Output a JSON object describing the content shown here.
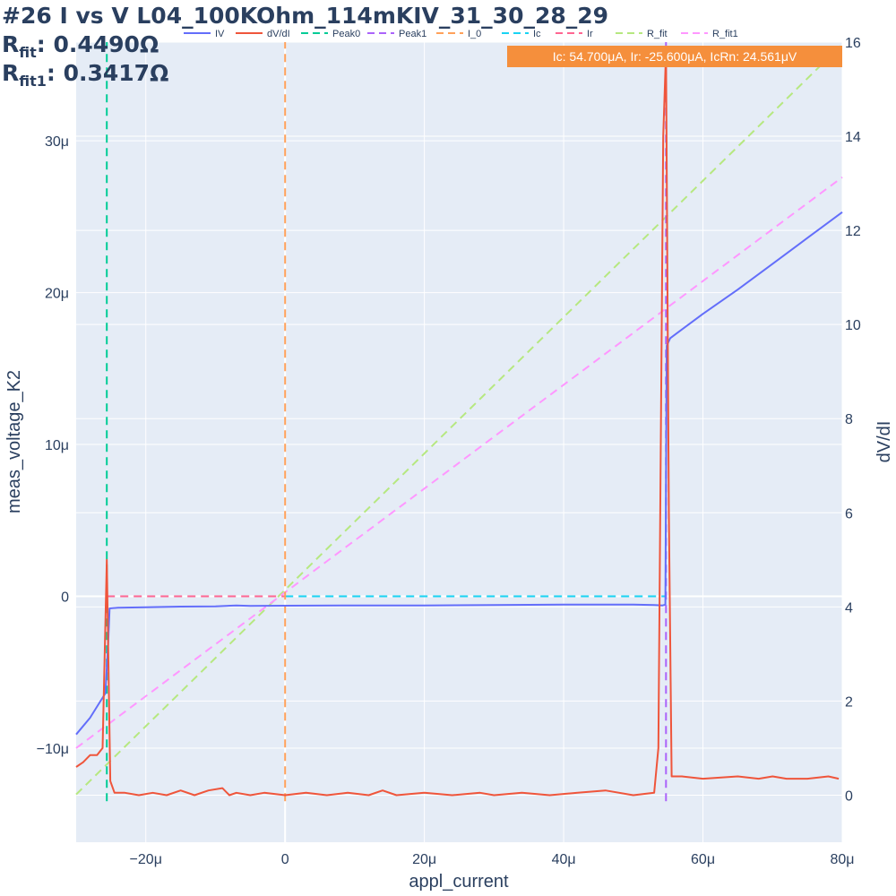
{
  "title": {
    "line1": "#26 I vs V L04_100KOhm_114mKIV_31_30_28_29",
    "rfit_label": "R",
    "rfit_sub": "fit",
    "rfit_value": ": 0.4490Ω",
    "rfit1_label": "R",
    "rfit1_sub": "fit1",
    "rfit1_value": ": 0.3417Ω"
  },
  "annotation": {
    "text": "Ic: 54.700μA, Ir: -25.600μA, IcRn: 24.561μV",
    "bg_color": "#f58f3c"
  },
  "chart_data": {
    "type": "line",
    "xlabel": "appl_current",
    "ylabel": "meas_voltage_K2",
    "y2label": "dV/dI",
    "xlim": [
      -3e-05,
      8e-05
    ],
    "ylim": [
      -1.62e-05,
      3.65e-05
    ],
    "y2lim": [
      -1.0,
      16.0
    ],
    "x_ticks": [
      -2e-05,
      0,
      2e-05,
      4e-05,
      6e-05,
      8e-05
    ],
    "x_tick_labels": [
      "−20μ",
      "0",
      "20μ",
      "40μ",
      "60μ",
      "80μ"
    ],
    "y_ticks": [
      -1e-05,
      0,
      1e-05,
      2e-05,
      3e-05
    ],
    "y_tick_labels": [
      "−10μ",
      "0",
      "10μ",
      "20μ",
      "30μ"
    ],
    "y2_ticks": [
      0,
      2,
      4,
      6,
      8,
      10,
      12,
      14,
      16
    ],
    "y2_tick_labels": [
      "0",
      "2",
      "4",
      "6",
      "8",
      "10",
      "12",
      "14",
      "16"
    ],
    "grid": true,
    "legend_position": "top",
    "series": [
      {
        "name": "IV",
        "color": "#636efa",
        "dash": "solid",
        "axis": "y",
        "x": [
          -3e-05,
          -2.8e-05,
          -2.65e-05,
          -2.58e-05,
          -2.54e-05,
          -2.52e-05,
          -2.4e-05,
          -2e-05,
          -1.5e-05,
          -1e-05,
          -7e-06,
          -5e-06,
          0,
          1e-05,
          2e-05,
          3e-05,
          4e-05,
          5e-05,
          5.3e-05,
          5.42e-05,
          5.46e-05,
          5.48e-05,
          5.53e-05,
          6e-05,
          6.5e-05,
          7e-05,
          7.5e-05,
          8e-05
        ],
        "y": [
          -9.1e-06,
          -8e-06,
          -6.9e-06,
          -6.4e-06,
          -3e-06,
          -8e-07,
          -7.5e-07,
          -7.2e-07,
          -6.8e-07,
          -6.6e-07,
          -6e-07,
          -6.4e-07,
          -6.2e-07,
          -6e-07,
          -6e-07,
          -5.8e-07,
          -5.5e-07,
          -5.5e-07,
          -5.8e-07,
          -6e-07,
          -5.5e-07,
          1.65e-05,
          1.7e-05,
          1.86e-05,
          2.02e-05,
          2.19e-05,
          2.36e-05,
          2.53e-05
        ]
      },
      {
        "name": "dV/dI",
        "color": "#ef553b",
        "dash": "solid",
        "axis": "y2",
        "x": [
          -3e-05,
          -2.9e-05,
          -2.8e-05,
          -2.7e-05,
          -2.62e-05,
          -2.56e-05,
          -2.51e-05,
          -2.45e-05,
          -2.3e-05,
          -2.1e-05,
          -1.9e-05,
          -1.7e-05,
          -1.5e-05,
          -1.3e-05,
          -1.1e-05,
          -9e-06,
          -8e-06,
          -7e-06,
          -5e-06,
          -3e-06,
          0,
          3e-06,
          6e-06,
          9e-06,
          1.2e-05,
          1.4e-05,
          1.6e-05,
          2e-05,
          2.4e-05,
          2.8e-05,
          3e-05,
          3.4e-05,
          3.8e-05,
          4.2e-05,
          4.6e-05,
          5e-05,
          5.3e-05,
          5.36e-05,
          5.43e-05,
          5.47e-05,
          5.51e-05,
          5.55e-05,
          5.7e-05,
          6e-05,
          6.5e-05,
          6.8e-05,
          7e-05,
          7.2e-05,
          7.5e-05,
          7.8e-05,
          7.95e-05
        ],
        "y": [
          0.6,
          0.7,
          0.85,
          0.85,
          1.0,
          5.0,
          0.3,
          0.05,
          0.05,
          0.0,
          0.05,
          0.0,
          0.1,
          0.0,
          0.1,
          0.15,
          0.0,
          0.05,
          0.0,
          0.05,
          0.0,
          0.05,
          0.0,
          0.05,
          0.0,
          0.1,
          0.0,
          0.05,
          0.0,
          0.05,
          0.0,
          0.05,
          0.0,
          0.05,
          0.1,
          0.0,
          0.05,
          1.0,
          14.0,
          15.8,
          6.0,
          0.4,
          0.4,
          0.35,
          0.4,
          0.35,
          0.4,
          0.35,
          0.35,
          0.4,
          0.35
        ]
      },
      {
        "name": "Peak0",
        "color": "#00cc96",
        "dash": "dash",
        "axis": "y",
        "x": [
          -2.56e-05,
          -2.56e-05
        ],
        "y": [
          -1.35e-05,
          3.65e-05
        ]
      },
      {
        "name": "Peak1",
        "color": "#ab63fa",
        "dash": "dash",
        "axis": "y",
        "x": [
          5.47e-05,
          5.47e-05
        ],
        "y": [
          -1.35e-05,
          3.65e-05
        ]
      },
      {
        "name": "I_0",
        "color": "#ffa15a",
        "dash": "dash",
        "axis": "y",
        "x": [
          0,
          0
        ],
        "y": [
          -1.35e-05,
          3.65e-05
        ]
      },
      {
        "name": "Ic",
        "color": "#19d3f3",
        "dash": "dash",
        "axis": "y",
        "x": [
          0,
          5.47e-05
        ],
        "y": [
          0,
          0
        ]
      },
      {
        "name": "Ir",
        "color": "#ff6692",
        "dash": "dash",
        "axis": "y",
        "x": [
          -2.56e-05,
          0
        ],
        "y": [
          0,
          0
        ]
      },
      {
        "name": "R_fit",
        "color": "#b6e880",
        "dash": "dash",
        "axis": "y",
        "x": [
          -3e-05,
          8e-05
        ],
        "y": [
          -1.305e-05,
          3.635e-05
        ]
      },
      {
        "name": "R_fit1",
        "color": "#ff97ff",
        "dash": "dash",
        "axis": "y",
        "x": [
          -3e-05,
          8e-05
        ],
        "y": [
          -1e-05,
          2.76e-05
        ]
      }
    ]
  }
}
